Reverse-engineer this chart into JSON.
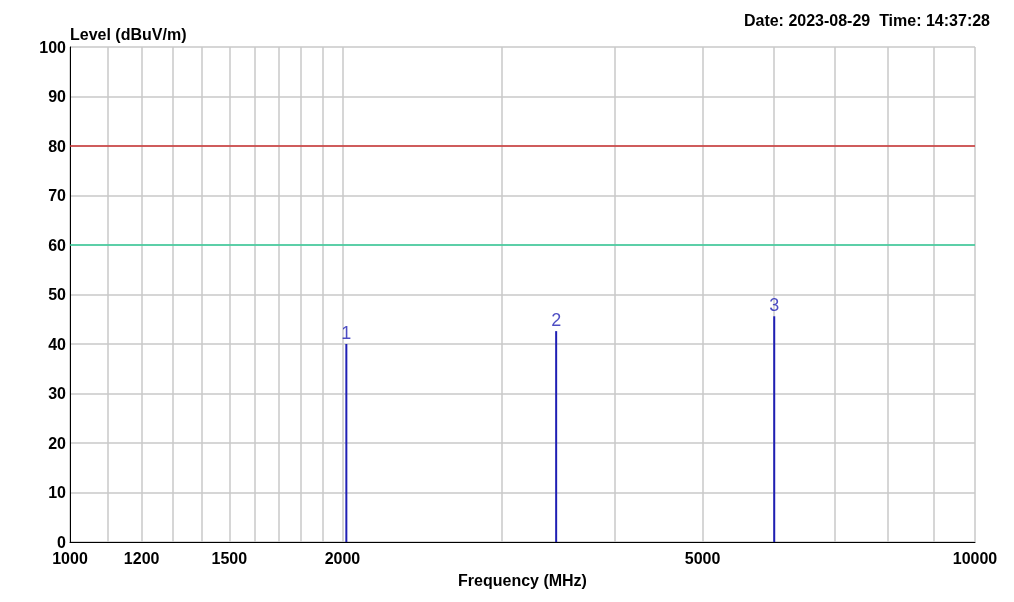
{
  "chart_data": {
    "type": "bar",
    "ylabel": "Level (dBuV/m)",
    "xlabel": "Frequency (MHz)",
    "x": [
      2020,
      3445,
      6000
    ],
    "values": [
      40,
      42.6,
      45.6
    ],
    "color": "#1f1fb4",
    "log": "x",
    "xlim": [
      1000,
      10000
    ],
    "xticks": [
      1000,
      {
        "value": 1100,
        "label": null
      },
      1200,
      {
        "value": 1300,
        "label": null
      },
      {
        "value": 1400,
        "label": null
      },
      1500,
      {
        "value": 1600,
        "label": null
      },
      {
        "value": 1700,
        "label": null
      },
      {
        "value": 1800,
        "label": null
      },
      {
        "value": 1900,
        "label": null
      },
      2000,
      {
        "value": 3000,
        "label": null
      },
      {
        "value": 4000,
        "label": null
      },
      5000,
      {
        "value": 6000,
        "label": null
      },
      {
        "value": 7000,
        "label": null
      },
      {
        "value": 8000,
        "label": null
      },
      {
        "value": 9000,
        "label": null
      },
      10000
    ],
    "ylim": [
      0,
      100
    ],
    "yticks": [
      0,
      10,
      20,
      30,
      40,
      50,
      60,
      70,
      80,
      90,
      100
    ],
    "grid": true,
    "ref_lines": [
      {
        "axis": "y",
        "value": 80,
        "label": null,
        "color": "#cc3333"
      },
      {
        "axis": "y",
        "value": 60,
        "label": null,
        "color": "#33cc99"
      }
    ],
    "annotations": [
      "Date: 2023-08-29  Time: 14:37:28",
      {
        "text": "1",
        "x": 2020,
        "y": 40
      },
      {
        "text": "2",
        "x": 3445,
        "y": 42.6
      },
      {
        "text": "3",
        "x": 6000,
        "y": 45.6
      }
    ]
  }
}
